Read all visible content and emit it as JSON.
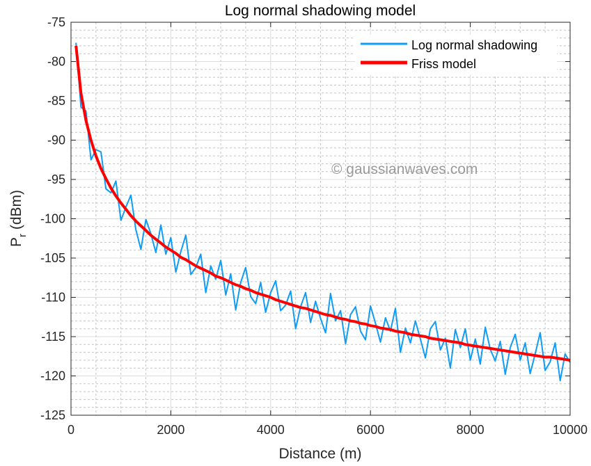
{
  "chart_data": {
    "type": "line",
    "title": "Log normal shadowing model",
    "xlabel": "Distance (m)",
    "ylabel_main": "P",
    "ylabel_sub": "r",
    "ylabel_unit": " (dBm)",
    "xlim": [
      0,
      10000
    ],
    "ylim": [
      -125,
      -75
    ],
    "xticks": [
      0,
      2000,
      4000,
      6000,
      8000,
      10000
    ],
    "xtick_labels": [
      "0",
      "2000",
      "4000",
      "6000",
      "8000",
      "10000"
    ],
    "yticks": [
      -75,
      -80,
      -85,
      -90,
      -95,
      -100,
      -105,
      -110,
      -115,
      -120,
      -125
    ],
    "ytick_labels": [
      "-75",
      "-80",
      "-85",
      "-90",
      "-95",
      "-100",
      "-105",
      "-110",
      "-115",
      "-120",
      "-125"
    ],
    "grid": true,
    "minor_grid": true,
    "legend_position": "top-right",
    "watermark": "© gaussianwaves.com",
    "x": [
      100,
      200,
      300,
      400,
      500,
      600,
      700,
      800,
      900,
      1000,
      1100,
      1200,
      1300,
      1400,
      1500,
      1600,
      1700,
      1800,
      1900,
      2000,
      2100,
      2200,
      2300,
      2400,
      2500,
      2600,
      2700,
      2800,
      2900,
      3000,
      3100,
      3200,
      3300,
      3400,
      3500,
      3600,
      3700,
      3800,
      3900,
      4000,
      4100,
      4200,
      4300,
      4400,
      4500,
      4600,
      4700,
      4800,
      4900,
      5000,
      5100,
      5200,
      5300,
      5400,
      5500,
      5600,
      5700,
      5800,
      5900,
      6000,
      6100,
      6200,
      6300,
      6400,
      6500,
      6600,
      6700,
      6800,
      6900,
      7000,
      7100,
      7200,
      7300,
      7400,
      7500,
      7600,
      7700,
      7800,
      7900,
      8000,
      8100,
      8200,
      8300,
      8400,
      8500,
      8600,
      8700,
      8800,
      8900,
      9000,
      9100,
      9200,
      9300,
      9400,
      9500,
      9600,
      9700,
      9800,
      9900,
      10000
    ],
    "series": [
      {
        "name": "Log normal shadowing",
        "color": "#0f9cf5",
        "values": [
          -77.6,
          -85.8,
          -86.3,
          -92.5,
          -91.2,
          -91.5,
          -96.2,
          -96.7,
          -95.2,
          -100.2,
          -98.5,
          -97.0,
          -101.4,
          -103.9,
          -100.1,
          -101.9,
          -104.3,
          -100.8,
          -104.5,
          -102.4,
          -106.8,
          -104.2,
          -102.1,
          -107.1,
          -106.2,
          -104.5,
          -109.4,
          -106.0,
          -107.7,
          -105.3,
          -109.7,
          -107.0,
          -111.6,
          -108.1,
          -106.2,
          -109.9,
          -110.8,
          -108.1,
          -111.9,
          -109.4,
          -107.9,
          -111.7,
          -111.0,
          -109.2,
          -114.0,
          -111.2,
          -109.4,
          -113.2,
          -110.5,
          -112.7,
          -114.5,
          -109.5,
          -113.0,
          -111.7,
          -115.9,
          -112.2,
          -111.2,
          -114.3,
          -115.4,
          -111.1,
          -113.3,
          -115.7,
          -112.6,
          -114.3,
          -111.4,
          -117.0,
          -113.9,
          -115.8,
          -113.0,
          -115.3,
          -117.7,
          -114.0,
          -113.1,
          -116.7,
          -115.2,
          -119.0,
          -114.1,
          -116.4,
          -114.0,
          -118.0,
          -115.3,
          -118.5,
          -113.8,
          -116.6,
          -118.1,
          -115.6,
          -119.8,
          -116.4,
          -114.7,
          -118.0,
          -115.8,
          -119.7,
          -117.2,
          -114.5,
          -119.3,
          -118.2,
          -115.8,
          -120.6,
          -117.2,
          -118.3
        ]
      },
      {
        "name": "Friss model",
        "color": "#ff0000",
        "values": [
          -78,
          -84,
          -87.5,
          -90,
          -92,
          -93.6,
          -94.9,
          -96.1,
          -97.1,
          -98,
          -98.8,
          -99.6,
          -100.3,
          -100.9,
          -101.5,
          -102.1,
          -102.6,
          -103.1,
          -103.6,
          -104,
          -104.4,
          -104.9,
          -105.2,
          -105.6,
          -106,
          -106.3,
          -106.6,
          -106.9,
          -107.3,
          -107.5,
          -107.8,
          -108.1,
          -108.4,
          -108.6,
          -108.9,
          -109.1,
          -109.4,
          -109.6,
          -109.8,
          -110,
          -110.3,
          -110.5,
          -110.7,
          -110.9,
          -111.1,
          -111.3,
          -111.4,
          -111.6,
          -111.8,
          -112,
          -112.2,
          -112.3,
          -112.5,
          -112.7,
          -112.8,
          -113,
          -113.1,
          -113.3,
          -113.4,
          -113.6,
          -113.7,
          -113.9,
          -114,
          -114.1,
          -114.3,
          -114.4,
          -114.5,
          -114.7,
          -114.8,
          -114.9,
          -115,
          -115.2,
          -115.3,
          -115.4,
          -115.5,
          -115.6,
          -115.7,
          -115.8,
          -116,
          -116.1,
          -116.2,
          -116.3,
          -116.4,
          -116.5,
          -116.6,
          -116.7,
          -116.8,
          -116.9,
          -117,
          -117.1,
          -117.2,
          -117.3,
          -117.4,
          -117.5,
          -117.6,
          -117.6,
          -117.7,
          -117.8,
          -117.9,
          -118
        ]
      }
    ]
  }
}
